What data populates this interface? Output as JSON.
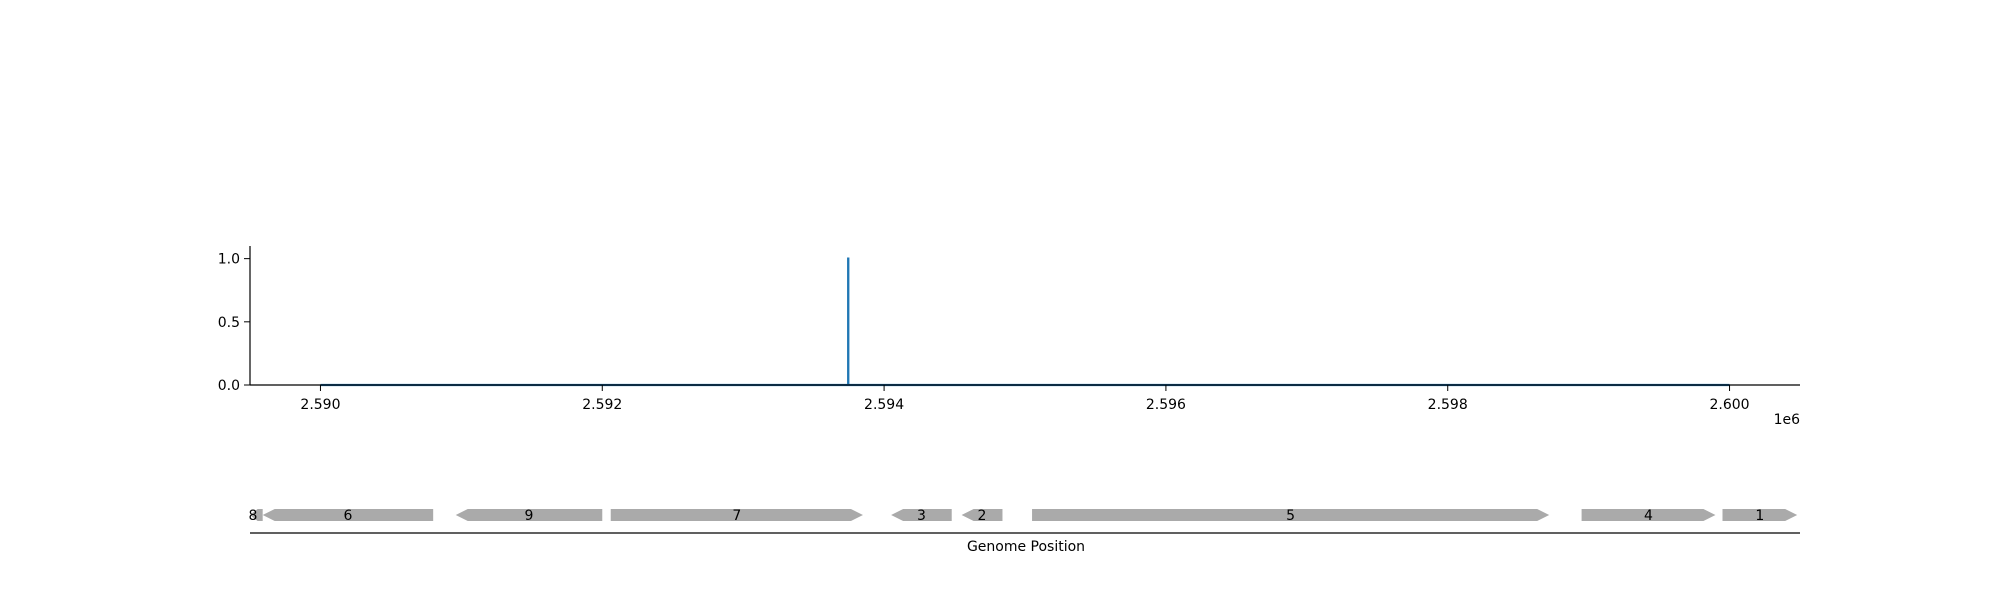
{
  "chart_data": [
    {
      "type": "line",
      "x": [
        2590000,
        2593745,
        2593745,
        2593746,
        2593746,
        2600000
      ],
      "y": [
        0,
        0,
        1,
        1,
        0,
        0
      ],
      "x_ticks": [
        "2.590",
        "2.592",
        "2.594",
        "2.596",
        "2.598",
        "2.600"
      ],
      "x_tick_values": [
        2590000,
        2592000,
        2594000,
        2596000,
        2598000,
        2600000
      ],
      "x_offset_label": "1e6",
      "y_ticks": [
        "0.0",
        "0.5",
        "1.0"
      ],
      "y_tick_values": [
        0,
        0.5,
        1.0
      ],
      "xlim": [
        2589500,
        2600500
      ],
      "ylim": [
        0,
        1.1
      ],
      "line_color": "#1f77b4",
      "grid": false
    },
    {
      "type": "gene-track",
      "xlabel": "Genome Position",
      "xlim": [
        2589500,
        2600500
      ],
      "feature_color": "#aaaaaa",
      "genes": [
        {
          "label": "8",
          "start": 2589500,
          "end": 2589590,
          "strand": "-"
        },
        {
          "label": "6",
          "start": 2589590,
          "end": 2590800,
          "strand": "-"
        },
        {
          "label": "9",
          "start": 2590960,
          "end": 2592000,
          "strand": "-"
        },
        {
          "label": "7",
          "start": 2592060,
          "end": 2593850,
          "strand": "+"
        },
        {
          "label": "3",
          "start": 2594050,
          "end": 2594480,
          "strand": "-"
        },
        {
          "label": "2",
          "start": 2594550,
          "end": 2594840,
          "strand": "-"
        },
        {
          "label": "5",
          "start": 2595050,
          "end": 2598720,
          "strand": "+"
        },
        {
          "label": "4",
          "start": 2598950,
          "end": 2599900,
          "strand": "+"
        },
        {
          "label": "1",
          "start": 2599950,
          "end": 2600480,
          "strand": "+"
        }
      ]
    }
  ]
}
